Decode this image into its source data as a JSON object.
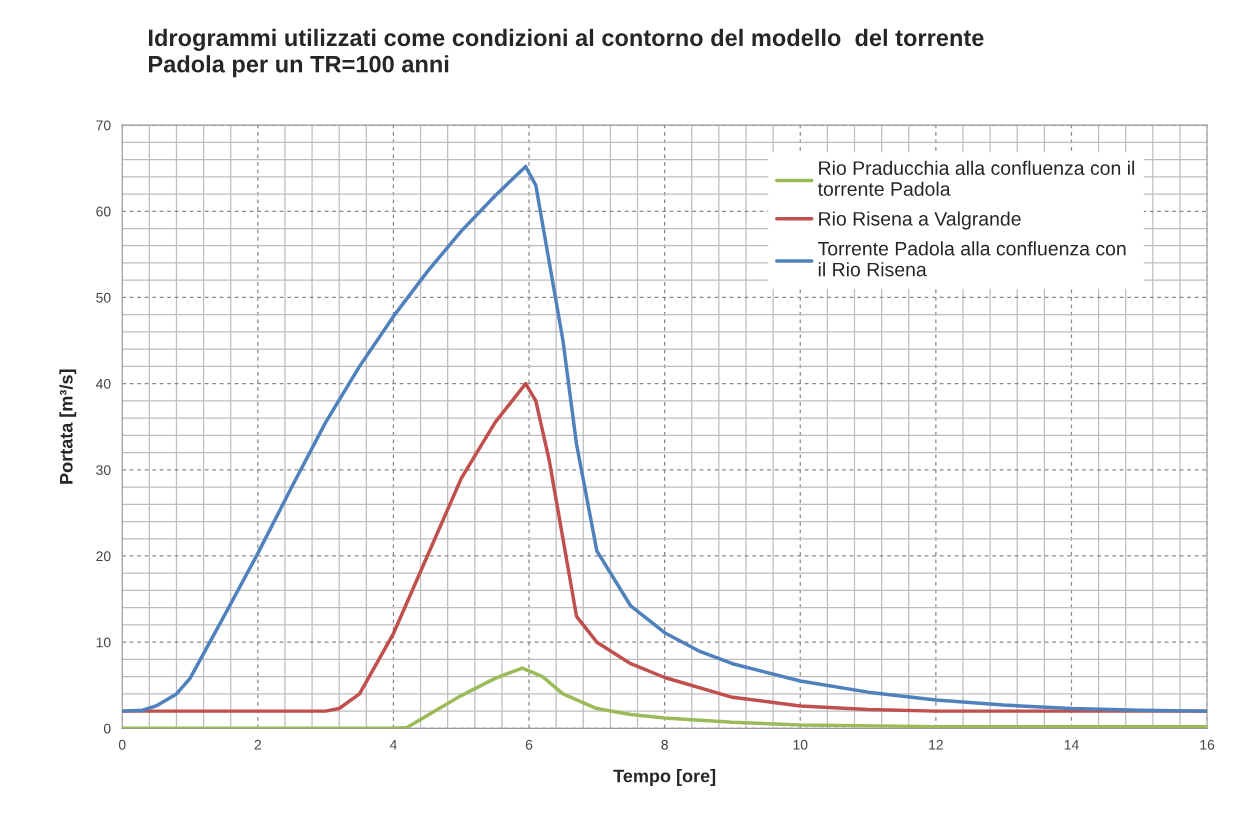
{
  "chart_data": {
    "type": "line",
    "title": "Idrogrammi utilizzati come condizioni al contorno del modello  del torrente\nPadola per un TR=100 anni",
    "xlabel": "Tempo [ore]",
    "ylabel": "Portata [m³/s]",
    "xlim": [
      0,
      16
    ],
    "xticks": [
      0,
      2,
      4,
      6,
      8,
      10,
      12,
      14,
      16
    ],
    "ylim": [
      0,
      70
    ],
    "yticks": [
      0,
      10,
      20,
      30,
      40,
      50,
      60,
      70
    ],
    "grid": true,
    "legend": "top right",
    "marker": "none",
    "line_style": "solid",
    "series": [
      {
        "name": "Rio Praducchia alla confluenza con il\ntorrente Padola",
        "color": "#9bbb59",
        "x": [
          0,
          2,
          4,
          4.2,
          4.5,
          5,
          5.5,
          5.9,
          6.2,
          6.5,
          7,
          7.5,
          8,
          9,
          10,
          12,
          14,
          16
        ],
        "values": [
          0,
          0,
          0,
          0.1,
          1.5,
          3.8,
          5.8,
          7,
          6,
          4,
          2.3,
          1.6,
          1.2,
          0.7,
          0.4,
          0.2,
          0.2,
          0.2
        ]
      },
      {
        "name": "Rio Risena a Valgrande",
        "color": "#c0504d",
        "x": [
          0,
          1,
          2,
          3,
          3.2,
          3.5,
          4,
          4.5,
          5,
          5.5,
          5.95,
          6.1,
          6.3,
          6.5,
          6.7,
          7,
          7.5,
          8,
          9,
          10,
          11,
          12,
          14,
          16
        ],
        "values": [
          2,
          2,
          2,
          2,
          2.3,
          4,
          11,
          20,
          29,
          35.5,
          40,
          38,
          31,
          22,
          13,
          10,
          7.5,
          5.9,
          3.6,
          2.6,
          2.2,
          2,
          2,
          2
        ]
      },
      {
        "name": "Torrente Padola alla confluenza con\nil Rio Risena",
        "color": "#4f81bd",
        "x": [
          0,
          0.3,
          0.5,
          0.8,
          1,
          1.5,
          2,
          2.5,
          3,
          3.5,
          4,
          4.5,
          5,
          5.5,
          5.95,
          6.1,
          6.3,
          6.5,
          6.7,
          7,
          7.5,
          8,
          8.5,
          9,
          10,
          11,
          12,
          13,
          14,
          15,
          16
        ],
        "values": [
          2,
          2.1,
          2.6,
          4,
          5.8,
          13,
          20.3,
          28,
          35.5,
          42,
          47.8,
          53,
          57.7,
          61.8,
          65.2,
          63,
          54,
          45,
          33,
          20.6,
          14.2,
          11.1,
          9,
          7.5,
          5.5,
          4.2,
          3.3,
          2.7,
          2.3,
          2.1,
          2
        ]
      }
    ]
  }
}
